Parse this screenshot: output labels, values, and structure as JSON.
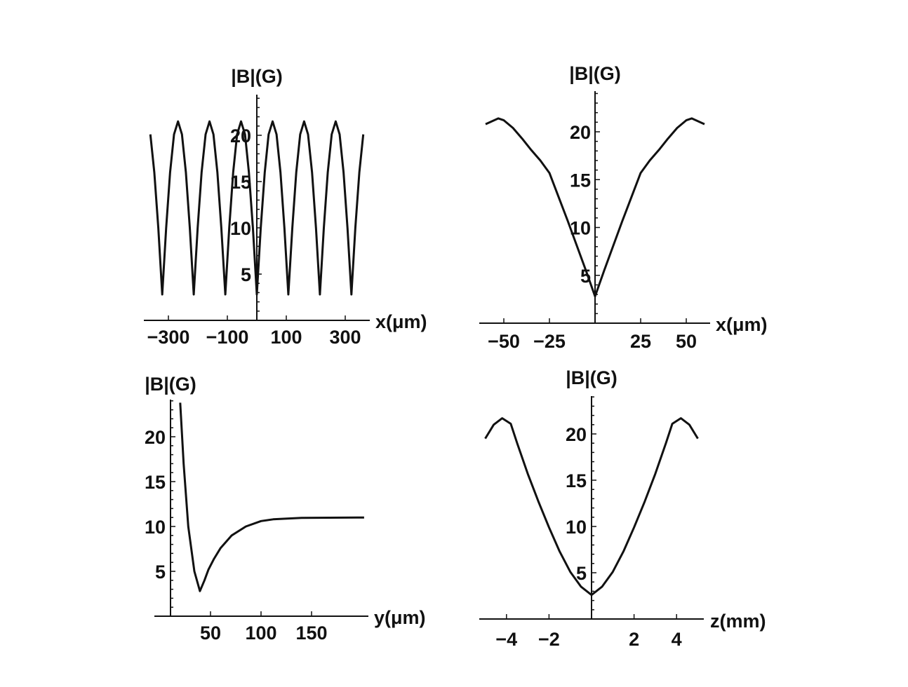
{
  "chart_data": [
    {
      "type": "line",
      "xlabel": "x(μm)",
      "ylabel": "|B|(G)",
      "xlim": [
        -383,
        383
      ],
      "ylim": [
        0,
        24.4
      ],
      "xticks": [
        -300,
        -100,
        100,
        300
      ],
      "xtick_labels": [
        "−300",
        "−100",
        "100",
        "300"
      ],
      "yticks": [
        5,
        10,
        15,
        20
      ],
      "ytick_labels": [
        "5",
        "10",
        "15",
        "20"
      ],
      "grid": false,
      "x": [
        -361.1,
        -347.8,
        -334.4,
        -321,
        -307.6,
        -294.3,
        -280.9,
        -267.5,
        -254.1,
        -240.8,
        -227.4,
        -214,
        -200.6,
        -187.3,
        -173.9,
        -160.5,
        -147.1,
        -133.8,
        -120.4,
        -107,
        -93.6,
        -80.3,
        -66.9,
        -53.5,
        -40.1,
        -26.8,
        -13.4,
        0,
        13.4,
        26.8,
        40.1,
        53.5,
        66.9,
        80.3,
        93.6,
        107,
        120.4,
        133.8,
        147.1,
        160.5,
        173.9,
        187.3,
        200.6,
        214,
        227.4,
        240.8,
        254.1,
        267.5,
        280.9,
        294.3,
        307.6,
        321,
        334.4,
        347.8,
        361.1
      ],
      "y": [
        20.1,
        16.0,
        10.0,
        2.8,
        10.0,
        16.0,
        20.1,
        21.5,
        20.1,
        16.0,
        10.0,
        2.8,
        10.0,
        16.0,
        20.1,
        21.5,
        20.1,
        16.0,
        10.0,
        2.8,
        10.0,
        16.0,
        20.1,
        21.5,
        20.1,
        16.0,
        10.0,
        2.8,
        10.0,
        16.0,
        20.1,
        21.5,
        20.1,
        16.0,
        10.0,
        2.8,
        10.0,
        16.0,
        20.1,
        21.5,
        20.1,
        16.0,
        10.0,
        2.8,
        10.0,
        16.0,
        20.1,
        21.5,
        20.1,
        16.0,
        10.0,
        2.8,
        10.0,
        16.0,
        20.1
      ]
    },
    {
      "type": "line",
      "xlabel": "x(μm)",
      "ylabel": "|B|(G)",
      "xlim": [
        -63,
        63
      ],
      "ylim": [
        0,
        24
      ],
      "xticks": [
        -50,
        -25,
        25,
        50
      ],
      "xtick_labels": [
        "−50",
        "−25",
        "25",
        "50"
      ],
      "yticks": [
        5,
        10,
        15,
        20
      ],
      "ytick_labels": [
        "5",
        "10",
        "15",
        "20"
      ],
      "grid": false,
      "x": [
        -60,
        -53,
        -50,
        -45,
        -40,
        -35,
        -30,
        -25,
        -20,
        -15,
        -10,
        -5,
        0,
        5,
        10,
        15,
        20,
        25,
        30,
        35,
        40,
        45,
        50,
        53,
        60
      ],
      "y": [
        20.8,
        21.4,
        21.2,
        20.4,
        19.3,
        18.1,
        17.0,
        15.7,
        13.2,
        10.7,
        8.1,
        5.5,
        2.8,
        5.5,
        8.1,
        10.7,
        13.2,
        15.7,
        17.0,
        18.1,
        19.3,
        20.4,
        21.2,
        21.4,
        20.8
      ]
    },
    {
      "type": "line",
      "xlabel": "y(μm)",
      "ylabel": "|B|(G)",
      "xlim": [
        10,
        205
      ],
      "ylim": [
        0,
        24
      ],
      "xticks": [
        50,
        100,
        150
      ],
      "xtick_labels": [
        "50",
        "100",
        "150"
      ],
      "yticks": [
        5,
        10,
        15,
        20
      ],
      "ytick_labels": [
        "5",
        "10",
        "15",
        "20"
      ],
      "grid": false,
      "x": [
        20,
        23.4,
        28,
        34,
        39.5,
        44,
        48,
        53.5,
        60,
        71,
        85,
        100,
        112,
        140,
        202
      ],
      "y": [
        23.8,
        17.0,
        10.0,
        5.0,
        2.8,
        4.0,
        5.2,
        6.4,
        7.6,
        9.0,
        10.0,
        10.6,
        10.8,
        10.95,
        11.0
      ]
    },
    {
      "type": "line",
      "xlabel": "z(mm)",
      "ylabel": "|B|(G)",
      "xlim": [
        -5.3,
        5.3
      ],
      "ylim": [
        0,
        24
      ],
      "xticks": [
        -4,
        -2,
        2,
        4
      ],
      "xtick_labels": [
        "−4",
        "−2",
        "2",
        "4"
      ],
      "yticks": [
        5,
        10,
        15,
        20
      ],
      "ytick_labels": [
        "5",
        "10",
        "15",
        "20"
      ],
      "grid": false,
      "x": [
        -5,
        -4.6,
        -4.2,
        -3.8,
        -3.5,
        -3,
        -2.5,
        -2,
        -1.5,
        -1,
        -0.5,
        0,
        0.5,
        1,
        1.5,
        2,
        2.5,
        3,
        3.5,
        3.8,
        4.2,
        4.6,
        5
      ],
      "y": [
        19.5,
        21.0,
        21.7,
        21.1,
        19.0,
        15.7,
        12.7,
        9.9,
        7.3,
        5.1,
        3.5,
        2.6,
        3.5,
        5.1,
        7.3,
        9.9,
        12.7,
        15.7,
        19.0,
        21.1,
        21.7,
        21.0,
        19.5
      ]
    }
  ]
}
